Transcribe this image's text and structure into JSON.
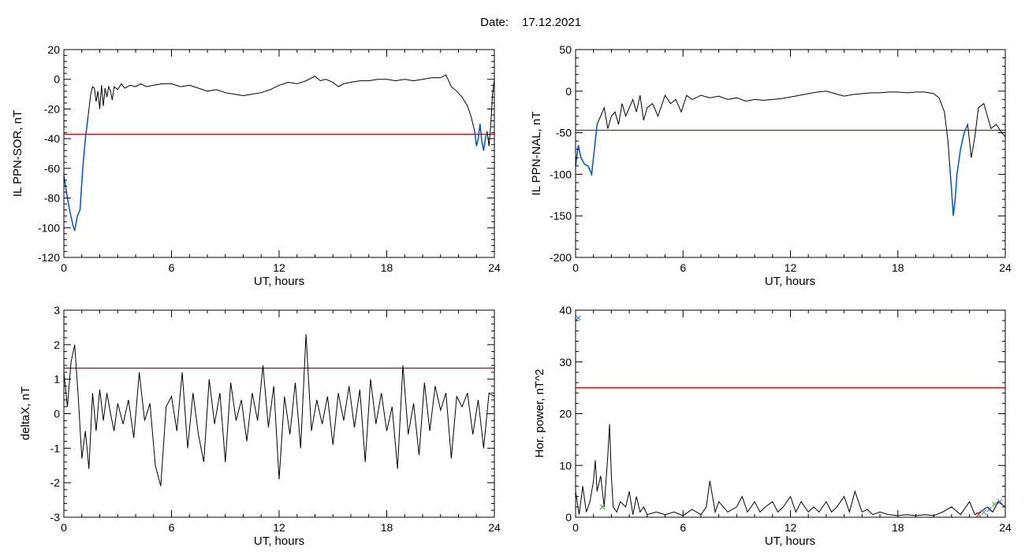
{
  "header": {
    "date_label": "Date:",
    "date_value": "17.12.2021"
  },
  "colors": {
    "axis": "#000000",
    "trace": "#000000",
    "threshold": "#cc0000",
    "highlight": "#0055dd",
    "marker_green": "#22aa22",
    "marker_blue": "#3377dd",
    "marker_red": "#dd3333"
  },
  "chart_data": [
    {
      "type": "line",
      "xlabel": "UT, hours",
      "ylabel": "IL PPN-SOR, nT",
      "xlim": [
        0,
        24
      ],
      "ylim": [
        -120,
        20
      ],
      "xticks": [
        0,
        6,
        12,
        18,
        24
      ],
      "yticks": [
        -120,
        -100,
        -80,
        -60,
        -40,
        -20,
        0,
        20
      ],
      "threshold": -37,
      "series": [
        {
          "x": [
            0,
            0.2,
            0.35,
            0.5,
            0.6,
            0.75,
            0.9,
            1.05,
            1.2,
            1.35,
            1.5,
            1.6,
            1.7,
            1.8,
            1.9,
            2.0,
            2.1,
            2.2,
            2.3,
            2.4,
            2.5,
            2.6,
            2.7,
            2.8,
            3.0,
            3.2,
            3.4,
            3.7,
            4.0,
            4.3,
            4.6,
            5.0,
            5.5,
            6.0,
            6.5,
            7.0,
            7.5,
            8.0,
            8.5,
            9.0,
            9.5,
            10.0,
            10.5,
            11.0,
            11.5,
            12.0,
            12.5,
            13.0,
            13.5,
            14.0,
            14.3,
            14.6,
            15.0,
            15.3,
            15.6,
            16.0,
            16.5,
            17.0,
            17.5,
            18.0,
            18.5,
            19.0,
            19.5,
            20.0,
            20.5,
            21.0,
            21.3,
            21.6,
            21.9,
            22.2,
            22.5,
            22.7,
            22.9,
            23.0,
            23.1,
            23.2,
            23.3,
            23.4,
            23.5,
            23.6,
            23.7,
            23.8,
            23.9,
            24.0
          ],
          "y": [
            -65,
            -80,
            -90,
            -98,
            -102,
            -92,
            -88,
            -60,
            -40,
            -25,
            -10,
            -5,
            -6,
            -15,
            -8,
            -20,
            -4,
            -18,
            -6,
            -12,
            -5,
            -8,
            -14,
            -5,
            -7,
            -3,
            -6,
            -4,
            -5,
            -3,
            -5,
            -4,
            -3,
            -3,
            -5,
            -4,
            -6,
            -8,
            -7,
            -9,
            -10,
            -11,
            -10,
            -9,
            -7,
            -4,
            -2,
            -3,
            -1,
            2,
            -1,
            0,
            -2,
            -5,
            -3,
            -2,
            -1,
            -1,
            0,
            0,
            -1,
            0,
            -1,
            0,
            1,
            1,
            3,
            -5,
            -8,
            -12,
            -18,
            -25,
            -35,
            -45,
            -40,
            -30,
            -42,
            -48,
            -40,
            -35,
            -45,
            -30,
            -10,
            0
          ]
        }
      ],
      "highlight_ranges": [
        [
          0,
          1.4
        ],
        [
          22.9,
          23.6
        ]
      ]
    },
    {
      "type": "line",
      "xlabel": "UT, hours",
      "ylabel": "IL PPN-NAL, nT",
      "xlim": [
        0,
        24
      ],
      "ylim": [
        -200,
        50
      ],
      "xticks": [
        0,
        6,
        12,
        18,
        24
      ],
      "yticks": [
        -200,
        -150,
        -100,
        -50,
        0,
        50
      ],
      "threshold": -47,
      "series": [
        {
          "x": [
            0,
            0.15,
            0.3,
            0.5,
            0.7,
            0.9,
            1.0,
            1.1,
            1.2,
            1.4,
            1.6,
            1.8,
            2.0,
            2.2,
            2.4,
            2.6,
            2.8,
            3.0,
            3.2,
            3.4,
            3.6,
            3.8,
            4.0,
            4.3,
            4.6,
            5.0,
            5.3,
            5.6,
            5.9,
            6.2,
            6.5,
            7.0,
            7.5,
            8.0,
            8.5,
            9.0,
            9.5,
            10.0,
            10.5,
            11.0,
            11.5,
            12.0,
            12.5,
            13.0,
            13.5,
            14.0,
            14.5,
            15.0,
            15.5,
            16.0,
            16.5,
            17.0,
            17.5,
            18.0,
            18.5,
            19.0,
            19.5,
            20.0,
            20.3,
            20.6,
            20.8,
            20.9,
            21.0,
            21.1,
            21.2,
            21.3,
            21.5,
            21.7,
            21.9,
            22.1,
            22.3,
            22.5,
            22.8,
            23.0,
            23.2,
            23.5,
            23.8,
            24.0
          ],
          "y": [
            -90,
            -65,
            -80,
            -88,
            -90,
            -100,
            -80,
            -60,
            -40,
            -30,
            -20,
            -45,
            -30,
            -25,
            -40,
            -15,
            -30,
            -20,
            -10,
            -25,
            -5,
            -35,
            -20,
            -15,
            -30,
            -5,
            -15,
            -10,
            -25,
            -5,
            -10,
            -5,
            -8,
            -6,
            -10,
            -8,
            -12,
            -10,
            -11,
            -10,
            -9,
            -7,
            -5,
            -3,
            -1,
            0,
            -3,
            -6,
            -4,
            -3,
            -2,
            -2,
            -1,
            -1,
            -2,
            -1,
            -1,
            -3,
            -8,
            -25,
            -60,
            -90,
            -120,
            -150,
            -130,
            -100,
            -70,
            -50,
            -40,
            -80,
            -55,
            -20,
            -15,
            -30,
            -45,
            -40,
            -50,
            -55
          ]
        }
      ],
      "highlight_ranges": [
        [
          0,
          1.3
        ],
        [
          20.9,
          21.9
        ]
      ]
    },
    {
      "type": "line",
      "xlabel": "UT, hours",
      "ylabel": "deltaX, nT",
      "xlim": [
        0,
        24
      ],
      "ylim": [
        -3,
        3
      ],
      "xticks": [
        0,
        6,
        12,
        18,
        24
      ],
      "yticks": [
        -3,
        -2,
        -1,
        0,
        1,
        2,
        3
      ],
      "threshold": 1.32,
      "series": [
        {
          "x": [
            0,
            0.2,
            0.4,
            0.6,
            0.8,
            1.0,
            1.2,
            1.4,
            1.6,
            1.8,
            2.0,
            2.2,
            2.4,
            2.6,
            2.8,
            3.0,
            3.3,
            3.6,
            3.9,
            4.2,
            4.5,
            4.8,
            5.1,
            5.4,
            5.7,
            6.0,
            6.3,
            6.6,
            6.9,
            7.2,
            7.5,
            7.8,
            8.1,
            8.4,
            8.7,
            9.0,
            9.3,
            9.6,
            9.9,
            10.2,
            10.5,
            10.8,
            11.1,
            11.4,
            11.7,
            12.0,
            12.3,
            12.6,
            12.9,
            13.2,
            13.5,
            13.8,
            14.1,
            14.4,
            14.7,
            15.0,
            15.3,
            15.6,
            15.9,
            16.2,
            16.5,
            16.8,
            17.1,
            17.4,
            17.7,
            18.0,
            18.3,
            18.6,
            18.9,
            19.2,
            19.5,
            19.8,
            20.1,
            20.4,
            20.7,
            21.0,
            21.3,
            21.6,
            21.9,
            22.2,
            22.5,
            22.8,
            23.1,
            23.4,
            23.7,
            24.0
          ],
          "y": [
            1.2,
            0.2,
            1.5,
            2.0,
            0.5,
            -1.3,
            -0.5,
            -1.6,
            0.6,
            -0.5,
            0.7,
            -0.2,
            0.6,
            0.0,
            -0.5,
            0.3,
            -0.3,
            0.4,
            -0.7,
            1.2,
            -0.2,
            0.3,
            -1.5,
            -2.1,
            0.2,
            0.5,
            -0.5,
            1.2,
            -1.0,
            0.6,
            -0.6,
            -1.4,
            1.0,
            -0.3,
            0.6,
            -1.4,
            0.9,
            -0.2,
            0.4,
            -0.8,
            0.6,
            -0.2,
            1.4,
            -0.4,
            0.8,
            -1.9,
            0.5,
            -0.6,
            0.9,
            -1.0,
            2.3,
            -0.5,
            0.4,
            -0.3,
            0.5,
            -0.9,
            0.6,
            -0.2,
            0.8,
            -0.4,
            0.7,
            -1.4,
            1.0,
            -0.3,
            0.6,
            -0.5,
            0.2,
            -1.6,
            1.4,
            -0.6,
            0.3,
            -1.2,
            0.9,
            -0.5,
            0.8,
            0.1,
            0.6,
            -1.3,
            0.5,
            0.2,
            0.6,
            -0.6,
            0.4,
            -1.0,
            0.6,
            0.5
          ]
        }
      ]
    },
    {
      "type": "line",
      "xlabel": "UT, hours",
      "ylabel": "Hor. power, nT^2",
      "xlim": [
        0,
        24
      ],
      "ylim": [
        0,
        40
      ],
      "xticks": [
        0,
        6,
        12,
        18,
        24
      ],
      "yticks": [
        0,
        10,
        20,
        30,
        40
      ],
      "threshold": 25,
      "series": [
        {
          "x": [
            0,
            0.2,
            0.4,
            0.6,
            0.8,
            1.0,
            1.1,
            1.2,
            1.4,
            1.6,
            1.8,
            1.9,
            2.0,
            2.1,
            2.3,
            2.5,
            2.8,
            3.0,
            3.2,
            3.4,
            3.6,
            3.8,
            4.0,
            4.5,
            5.0,
            5.5,
            6.0,
            6.5,
            7.0,
            7.3,
            7.5,
            7.8,
            8.0,
            8.5,
            9.0,
            9.3,
            9.6,
            10.0,
            10.3,
            10.6,
            11.0,
            11.3,
            11.6,
            12.0,
            12.3,
            12.6,
            13.0,
            13.3,
            13.6,
            14.0,
            14.3,
            14.6,
            15.0,
            15.3,
            15.6,
            16.0,
            16.3,
            16.6,
            17.0,
            17.5,
            18.0,
            18.5,
            19.0,
            19.5,
            20.0,
            20.5,
            21.0,
            21.5,
            22.0,
            22.3,
            22.6,
            23.0,
            23.3,
            23.6,
            24.0
          ],
          "y": [
            5,
            0.5,
            6,
            1,
            3,
            7,
            11,
            5,
            8,
            2,
            12,
            18,
            8,
            2,
            1,
            3,
            2,
            5,
            0.5,
            4,
            1,
            2,
            0.5,
            1,
            0.5,
            1,
            0.3,
            1.5,
            0.5,
            2,
            7,
            1,
            3,
            1,
            2,
            4,
            1,
            3,
            1,
            2,
            3,
            1,
            2,
            4,
            1,
            3,
            1,
            2,
            1,
            3,
            1,
            2,
            4,
            1,
            5,
            1,
            1.5,
            0.5,
            1,
            0.5,
            0.3,
            0.5,
            0.3,
            0.5,
            0.3,
            1,
            2,
            0.5,
            3,
            0.5,
            1,
            2,
            1,
            3,
            2
          ]
        }
      ],
      "markers": [
        {
          "x": 0.15,
          "y": 38.5,
          "symbol": "x",
          "color": "blue"
        },
        {
          "x": 1.5,
          "y": 2,
          "symbol": "x",
          "color": "green"
        },
        {
          "x": 22.5,
          "y": 0.5,
          "symbol": "x",
          "color": "red"
        },
        {
          "x": 22.8,
          "y": 1,
          "symbol": "x",
          "color": "blue"
        },
        {
          "x": 23.1,
          "y": 1.5,
          "symbol": "x",
          "color": "blue"
        },
        {
          "x": 23.4,
          "y": 2.5,
          "symbol": "x",
          "color": "green"
        },
        {
          "x": 23.7,
          "y": 3,
          "symbol": "x",
          "color": "blue"
        }
      ]
    }
  ]
}
